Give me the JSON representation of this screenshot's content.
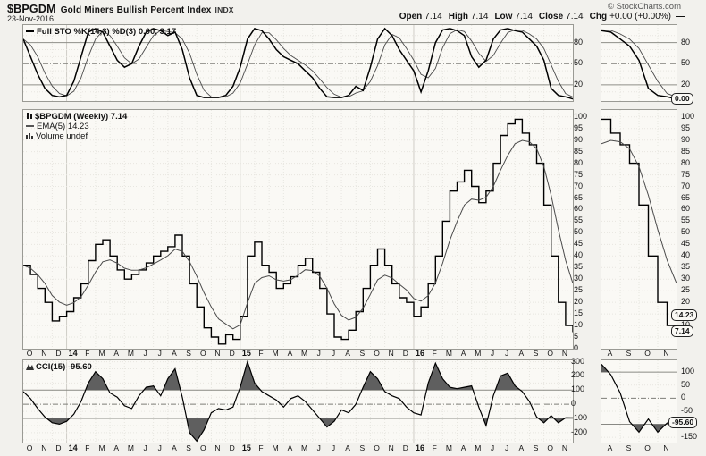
{
  "header": {
    "symbol": "$BPGDM",
    "name": "Gold Miners Bullish Percent Index",
    "exchange": "INDX",
    "date": "23-Nov-2016",
    "copyright": "© StockCharts.com",
    "quote": [
      {
        "label": "Open",
        "value": "7.14"
      },
      {
        "label": "High",
        "value": "7.14"
      },
      {
        "label": "Low",
        "value": "7.14"
      },
      {
        "label": "Close",
        "value": "7.14"
      },
      {
        "label": "Chg",
        "value": "+0.00 (+0.00%)"
      }
    ],
    "close_marker": "—"
  },
  "panels": {
    "sto": {
      "legend": "Full STO %K(14,3) %D(3) 0.00, 3.17",
      "yticks": [
        80,
        50,
        20
      ],
      "value_box": "0.00"
    },
    "price": {
      "legend_symbol": "$BPGDM (Weekly) 7.14",
      "legend_ema": "EMA(5) 14.23",
      "legend_volume": "Volume undef",
      "mid_ticks": [
        100,
        95,
        90,
        85,
        80,
        75,
        70,
        65,
        60,
        55,
        50,
        45,
        40,
        35,
        30,
        25,
        20,
        15,
        10,
        5,
        0
      ],
      "right_ticks": [
        100,
        95,
        90,
        85,
        80,
        75,
        70,
        65,
        60,
        55,
        50,
        45,
        40,
        35,
        30,
        25,
        20,
        10
      ],
      "ema_box": "14.23",
      "close_box": "7.14"
    },
    "cci": {
      "legend": "CCI(15) -95.60",
      "mid_ticks": [
        300,
        200,
        100,
        0,
        -100,
        -200
      ],
      "right_ticks": [
        100,
        50,
        0,
        -50,
        -150
      ],
      "value_box": "-95.60"
    }
  },
  "axis": {
    "x_labels": [
      "O",
      "N",
      "D",
      "14",
      "F",
      "M",
      "A",
      "M",
      "J",
      "J",
      "A",
      "S",
      "O",
      "N",
      "D",
      "15",
      "F",
      "M",
      "A",
      "M",
      "J",
      "J",
      "A",
      "S",
      "O",
      "N",
      "D",
      "16",
      "F",
      "M",
      "A",
      "M",
      "J",
      "J",
      "A",
      "S",
      "O",
      "N"
    ],
    "year_indices": [
      3,
      15,
      27
    ],
    "inset_x_labels": [
      "A",
      "S",
      "O",
      "N"
    ]
  },
  "colors": {
    "line_main": "#000000",
    "line_secondary": "#4a4a4a",
    "cci_fill": "#5f5f5f",
    "grid_faint": "#e7e6e0",
    "grid_year": "#cfcec7",
    "hline_solid": "#8f8f89",
    "hline_dashdot": "#7e7e78",
    "panel_bg": "#faf9f5"
  },
  "chart_data": [
    {
      "id": "sto",
      "type": "line",
      "title": "Full STO %K(14,3) %D(3)",
      "x_range": "Oct-2013 to 23-Nov-2016, semi-monthly samples",
      "ylim": [
        0,
        100
      ],
      "hlines": {
        "solid": [
          20,
          80
        ],
        "dashdot": [
          50
        ],
        "dotted": [
          10,
          30,
          40,
          60,
          70,
          90
        ]
      },
      "inset_start": 68,
      "series": [
        {
          "name": "%K(14,3)",
          "last": 0.0,
          "values": [
            85,
            60,
            35,
            15,
            5,
            3,
            5,
            25,
            60,
            95,
            100,
            95,
            75,
            55,
            45,
            50,
            75,
            95,
            100,
            97,
            90,
            95,
            70,
            30,
            5,
            2,
            2,
            2,
            5,
            18,
            45,
            85,
            100,
            97,
            85,
            70,
            60,
            55,
            50,
            40,
            30,
            15,
            3,
            2,
            2,
            5,
            18,
            12,
            45,
            85,
            100,
            90,
            70,
            55,
            40,
            10,
            40,
            80,
            98,
            100,
            97,
            90,
            60,
            45,
            55,
            85,
            98,
            100,
            97,
            95,
            85,
            75,
            55,
            15,
            5,
            3,
            0
          ]
        },
        {
          "name": "%D(3)",
          "last": 3.17,
          "derived": "3-period average of %K"
        }
      ]
    },
    {
      "id": "price",
      "type": "line",
      "title": "$BPGDM Gold Miners Bullish Percent Index (Weekly)",
      "x_range": "Oct-2013 to 23-Nov-2016, semi-monthly samples",
      "ylim": [
        0,
        100
      ],
      "hlines": {
        "solid": [],
        "dashdot": [],
        "dotted": [
          5,
          10,
          15,
          20,
          25,
          30,
          35,
          40,
          45,
          50,
          55,
          60,
          65,
          70,
          75,
          80,
          85,
          90,
          95,
          100
        ]
      },
      "inset_start": 68,
      "series": [
        {
          "name": "$BPGDM close",
          "last": 7.14,
          "values": [
            36,
            32,
            26,
            20,
            12,
            14,
            16,
            22,
            28,
            38,
            45,
            47,
            40,
            34,
            30,
            32,
            34,
            37,
            40,
            42,
            44,
            49,
            40,
            28,
            18,
            9,
            5,
            2,
            6,
            4,
            14,
            40,
            46,
            36,
            33,
            26,
            28,
            31,
            36,
            39,
            33,
            26,
            15,
            5,
            4,
            8,
            16,
            26,
            36,
            43,
            36,
            28,
            22,
            20,
            14,
            18,
            28,
            40,
            55,
            68,
            72,
            77,
            70,
            63,
            68,
            80,
            92,
            97,
            99,
            93,
            88,
            80,
            62,
            40,
            20,
            10,
            7.14
          ]
        },
        {
          "name": "EMA(5)",
          "last": 14.23,
          "derived": "exponential moving average of close"
        }
      ]
    },
    {
      "id": "cci",
      "type": "area-line",
      "title": "CCI(15)",
      "x_range": "Oct-2013 to 23-Nov-2016, semi-monthly samples",
      "ylim": [
        -260,
        300
      ],
      "hlines": {
        "solid": [
          100,
          -100
        ],
        "dashdot": [
          0
        ],
        "dotted": [
          300,
          200,
          -200,
          50,
          150,
          250,
          -50,
          -150,
          -250
        ]
      },
      "fill_above": 100,
      "fill_below": -100,
      "inset_start": 68,
      "series": [
        {
          "name": "CCI(15)",
          "last": -95.6,
          "values": [
            90,
            40,
            -30,
            -90,
            -130,
            -140,
            -120,
            -70,
            20,
            150,
            230,
            180,
            80,
            50,
            -10,
            -30,
            60,
            120,
            130,
            60,
            180,
            250,
            50,
            -200,
            -260,
            -180,
            -60,
            -30,
            -40,
            -20,
            120,
            300,
            150,
            90,
            60,
            30,
            -20,
            40,
            60,
            20,
            -40,
            -100,
            -160,
            -120,
            -40,
            -60,
            0,
            120,
            230,
            180,
            90,
            60,
            40,
            -20,
            -60,
            -75,
            150,
            290,
            180,
            120,
            110,
            120,
            130,
            -20,
            -150,
            60,
            200,
            220,
            130,
            90,
            20,
            -90,
            -130,
            -80,
            -130,
            -95,
            -95.6
          ]
        }
      ]
    }
  ]
}
